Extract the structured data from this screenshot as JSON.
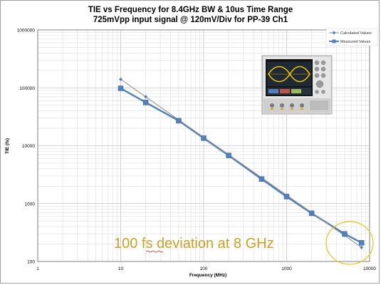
{
  "chart_data": {
    "type": "line",
    "title": "TIE vs Frequency for 8.4GHz BW & 10us Time Range",
    "subtitle": "725mVpp input signal @ 120mV/Div for PP-39 Ch1",
    "xlabel": "Frequency (MHz)",
    "ylabel": "TIE (fs)",
    "xscale": "log",
    "yscale": "log",
    "xlim": [
      1,
      10000
    ],
    "ylim": [
      100,
      1000000
    ],
    "x_tick_labels": [
      "1",
      "10",
      "100",
      "1000",
      "10000"
    ],
    "y_tick_labels": [
      "100",
      "1000",
      "10000",
      "100000",
      "1000000"
    ],
    "grid": true,
    "legend_position": "top-right",
    "series": [
      {
        "name": "Calculated Values",
        "color": "#8c8c8c",
        "marker": "diamond",
        "x": [
          10,
          20,
          50,
          100,
          200,
          500,
          1000,
          2000,
          5000,
          8000
        ],
        "y": [
          140000,
          70000,
          28000,
          14000,
          7000,
          2800,
          1400,
          700,
          280,
          175
        ]
      },
      {
        "name": "Measured Values",
        "color": "#4f81bd",
        "marker": "square",
        "x": [
          10,
          20,
          50,
          100,
          200,
          500,
          1000,
          2000,
          5000,
          8000
        ],
        "y": [
          98000,
          56000,
          27000,
          13500,
          6800,
          2650,
          1320,
          680,
          300,
          210
        ]
      }
    ],
    "annotation": {
      "text": "100 fs deviation at 8 GHz",
      "color": "#c9a227"
    }
  },
  "inset": {
    "icon": "oscilloscope-photo-icon"
  }
}
